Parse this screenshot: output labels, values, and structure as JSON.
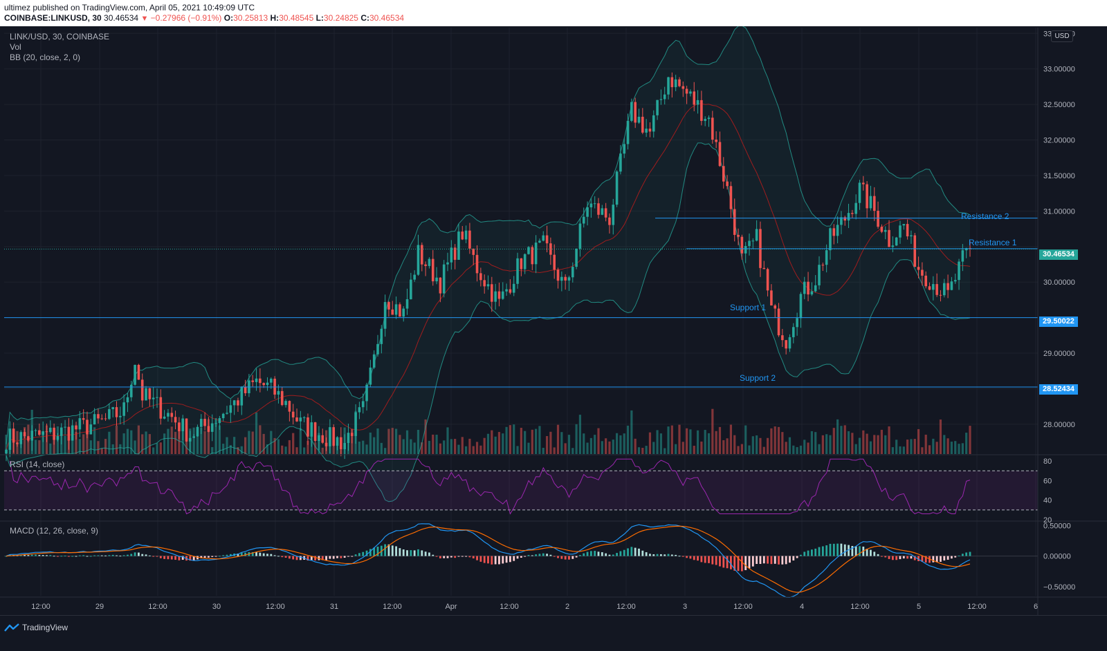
{
  "header": {
    "publisher_line": "ultimez published on TradingView.com, April 05, 2021 10:49:09 UTC",
    "symbol": "COINBASE:LINKUSD, 30",
    "last": "30.46534",
    "change": "−0.27966 (−0.91%)",
    "o_label": "O:",
    "o_value": "30.25813",
    "h_label": "H:",
    "h_value": "30.48545",
    "l_label": "L:",
    "l_value": "30.24825",
    "c_label": "C:",
    "c_value": "30.46534"
  },
  "legend": {
    "main": "LINK/USD, 30, COINBASE",
    "vol": "Vol",
    "bb": "BB (20, close, 2, 0)",
    "rsi": "RSI (14, close)",
    "macd": "MACD (12, 26, close, 9)"
  },
  "currency_badge": "USD",
  "price_scale": [
    "33.50000",
    "33.00000",
    "32.50000",
    "32.00000",
    "31.50000",
    "31.00000",
    "30.00000",
    "29.00000",
    "28.00000"
  ],
  "rsi_scale": [
    "80",
    "60",
    "40",
    "20"
  ],
  "macd_scale": [
    "0.50000",
    "0.00000",
    "−0.50000"
  ],
  "time_axis": [
    "12:00",
    "29",
    "12:00",
    "30",
    "12:00",
    "31",
    "12:00",
    "Apr",
    "12:00",
    "2",
    "12:00",
    "3",
    "12:00",
    "4",
    "12:00",
    "5",
    "12:00",
    "6"
  ],
  "price_tags": {
    "current": "30.46534",
    "support1_level": "29.50022",
    "support2_level": "28.52434"
  },
  "annotations": {
    "resistance2": "Resistance 2",
    "resistance1": "Resistance 1",
    "support1": "Support 1",
    "support2": "Support 2"
  },
  "footer": {
    "logo_text": "TradingView"
  },
  "colors": {
    "up": "#26a69a",
    "down": "#ef5350",
    "bb": "#26a69a",
    "basis": "#b71c1c",
    "rsi": "#9c27b0",
    "macd": "#2196f3",
    "signal": "#ff6d00",
    "levels": "#2196f3"
  },
  "chart_data": {
    "type": "candlestick",
    "symbol": "LINK/USD",
    "interval": "30",
    "ylim": [
      27.6,
      33.6
    ],
    "price_path": [
      [
        0,
        27.8
      ],
      [
        12,
        27.85
      ],
      [
        20,
        27.95
      ],
      [
        27,
        28.05
      ],
      [
        32,
        28.2
      ],
      [
        35,
        28.9
      ],
      [
        37,
        28.4
      ],
      [
        40,
        28.3
      ],
      [
        45,
        28.1
      ],
      [
        50,
        27.85
      ],
      [
        55,
        28.0
      ],
      [
        62,
        28.3
      ],
      [
        68,
        28.6
      ],
      [
        72,
        28.5
      ],
      [
        76,
        28.3
      ],
      [
        80,
        28.0
      ],
      [
        84,
        27.9
      ],
      [
        88,
        27.8
      ],
      [
        92,
        27.75
      ],
      [
        94,
        27.95
      ],
      [
        97,
        28.2
      ],
      [
        100,
        28.9
      ],
      [
        103,
        29.8
      ],
      [
        108,
        29.55
      ],
      [
        112,
        30.4
      ],
      [
        118,
        30.0
      ],
      [
        124,
        30.7
      ],
      [
        128,
        30.2
      ],
      [
        134,
        29.7
      ],
      [
        140,
        30.3
      ],
      [
        146,
        30.5
      ],
      [
        152,
        29.9
      ],
      [
        158,
        31.1
      ],
      [
        164,
        30.9
      ],
      [
        170,
        32.4
      ],
      [
        175,
        32.1
      ],
      [
        180,
        32.9
      ],
      [
        186,
        32.6
      ],
      [
        191,
        32.3
      ],
      [
        196,
        31.3
      ],
      [
        200,
        30.3
      ],
      [
        204,
        30.6
      ],
      [
        208,
        29.6
      ],
      [
        212,
        29.2
      ],
      [
        216,
        29.8
      ],
      [
        220,
        30.05
      ],
      [
        224,
        30.6
      ],
      [
        228,
        30.9
      ],
      [
        232,
        31.3
      ],
      [
        236,
        31.0
      ],
      [
        240,
        30.6
      ],
      [
        244,
        30.8
      ],
      [
        248,
        30.2
      ],
      [
        252,
        30.0
      ],
      [
        256,
        29.8
      ],
      [
        260,
        30.3
      ],
      [
        262,
        30.46534
      ]
    ],
    "support_resistance": [
      {
        "name": "Resistance 2",
        "value": 30.9
      },
      {
        "name": "Resistance 1",
        "value": 30.47
      },
      {
        "name": "Support 1",
        "value": 29.50022
      },
      {
        "name": "Support 2",
        "value": 28.52434
      }
    ],
    "indicators": [
      "Vol",
      "BB (20, close, 2, 0)",
      "RSI (14, close)",
      "MACD (12, 26, close, 9)"
    ],
    "rsi_bands": [
      30,
      70
    ],
    "rsi_range": [
      20,
      85
    ],
    "macd_range": [
      -0.65,
      0.55
    ]
  }
}
